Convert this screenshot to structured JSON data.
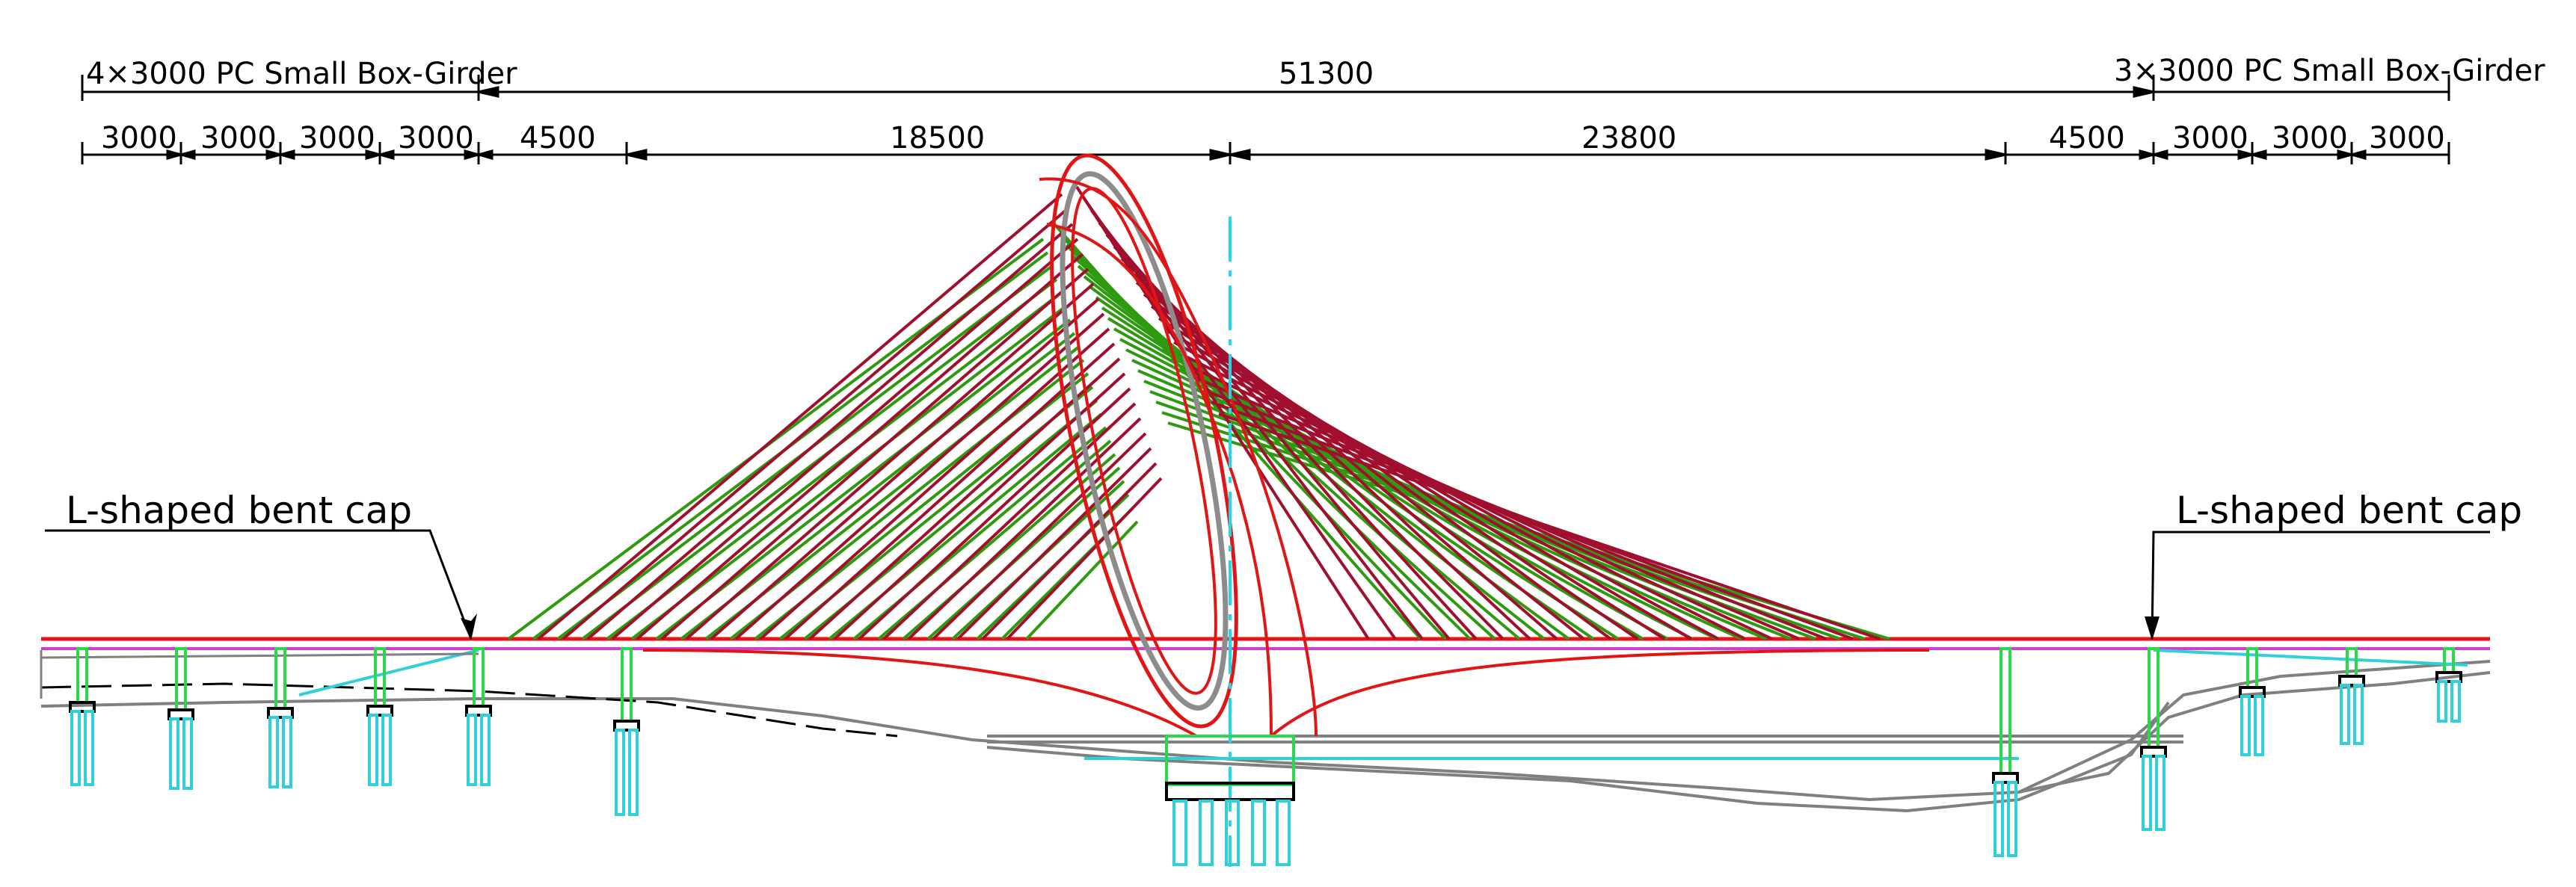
{
  "top_dimensions": {
    "left_group": "4×3000 PC Small Box-Girder",
    "main_span": "51300",
    "right_group": "3×3000 PC Small Box-Girder"
  },
  "span_dimensions": [
    "3000",
    "3000",
    "3000",
    "3000",
    "4500",
    "18500",
    "23800",
    "4500",
    "3000",
    "3000",
    "3000"
  ],
  "callouts": {
    "left": "L-shaped bent cap",
    "right": "L-shaped bent cap"
  },
  "colors": {
    "deck": "#e8141a",
    "girder_soffit": "#d040d0",
    "arch_outer": "#e01515",
    "arch_inner": "#8c8c8c",
    "cable_green": "#2e9a10",
    "cable_red": "#a0102e",
    "pier": "#2ad94a",
    "pile": "#30d0d8",
    "ground": "#808080",
    "centerline": "#20d8e8",
    "dimension": "#000000"
  }
}
